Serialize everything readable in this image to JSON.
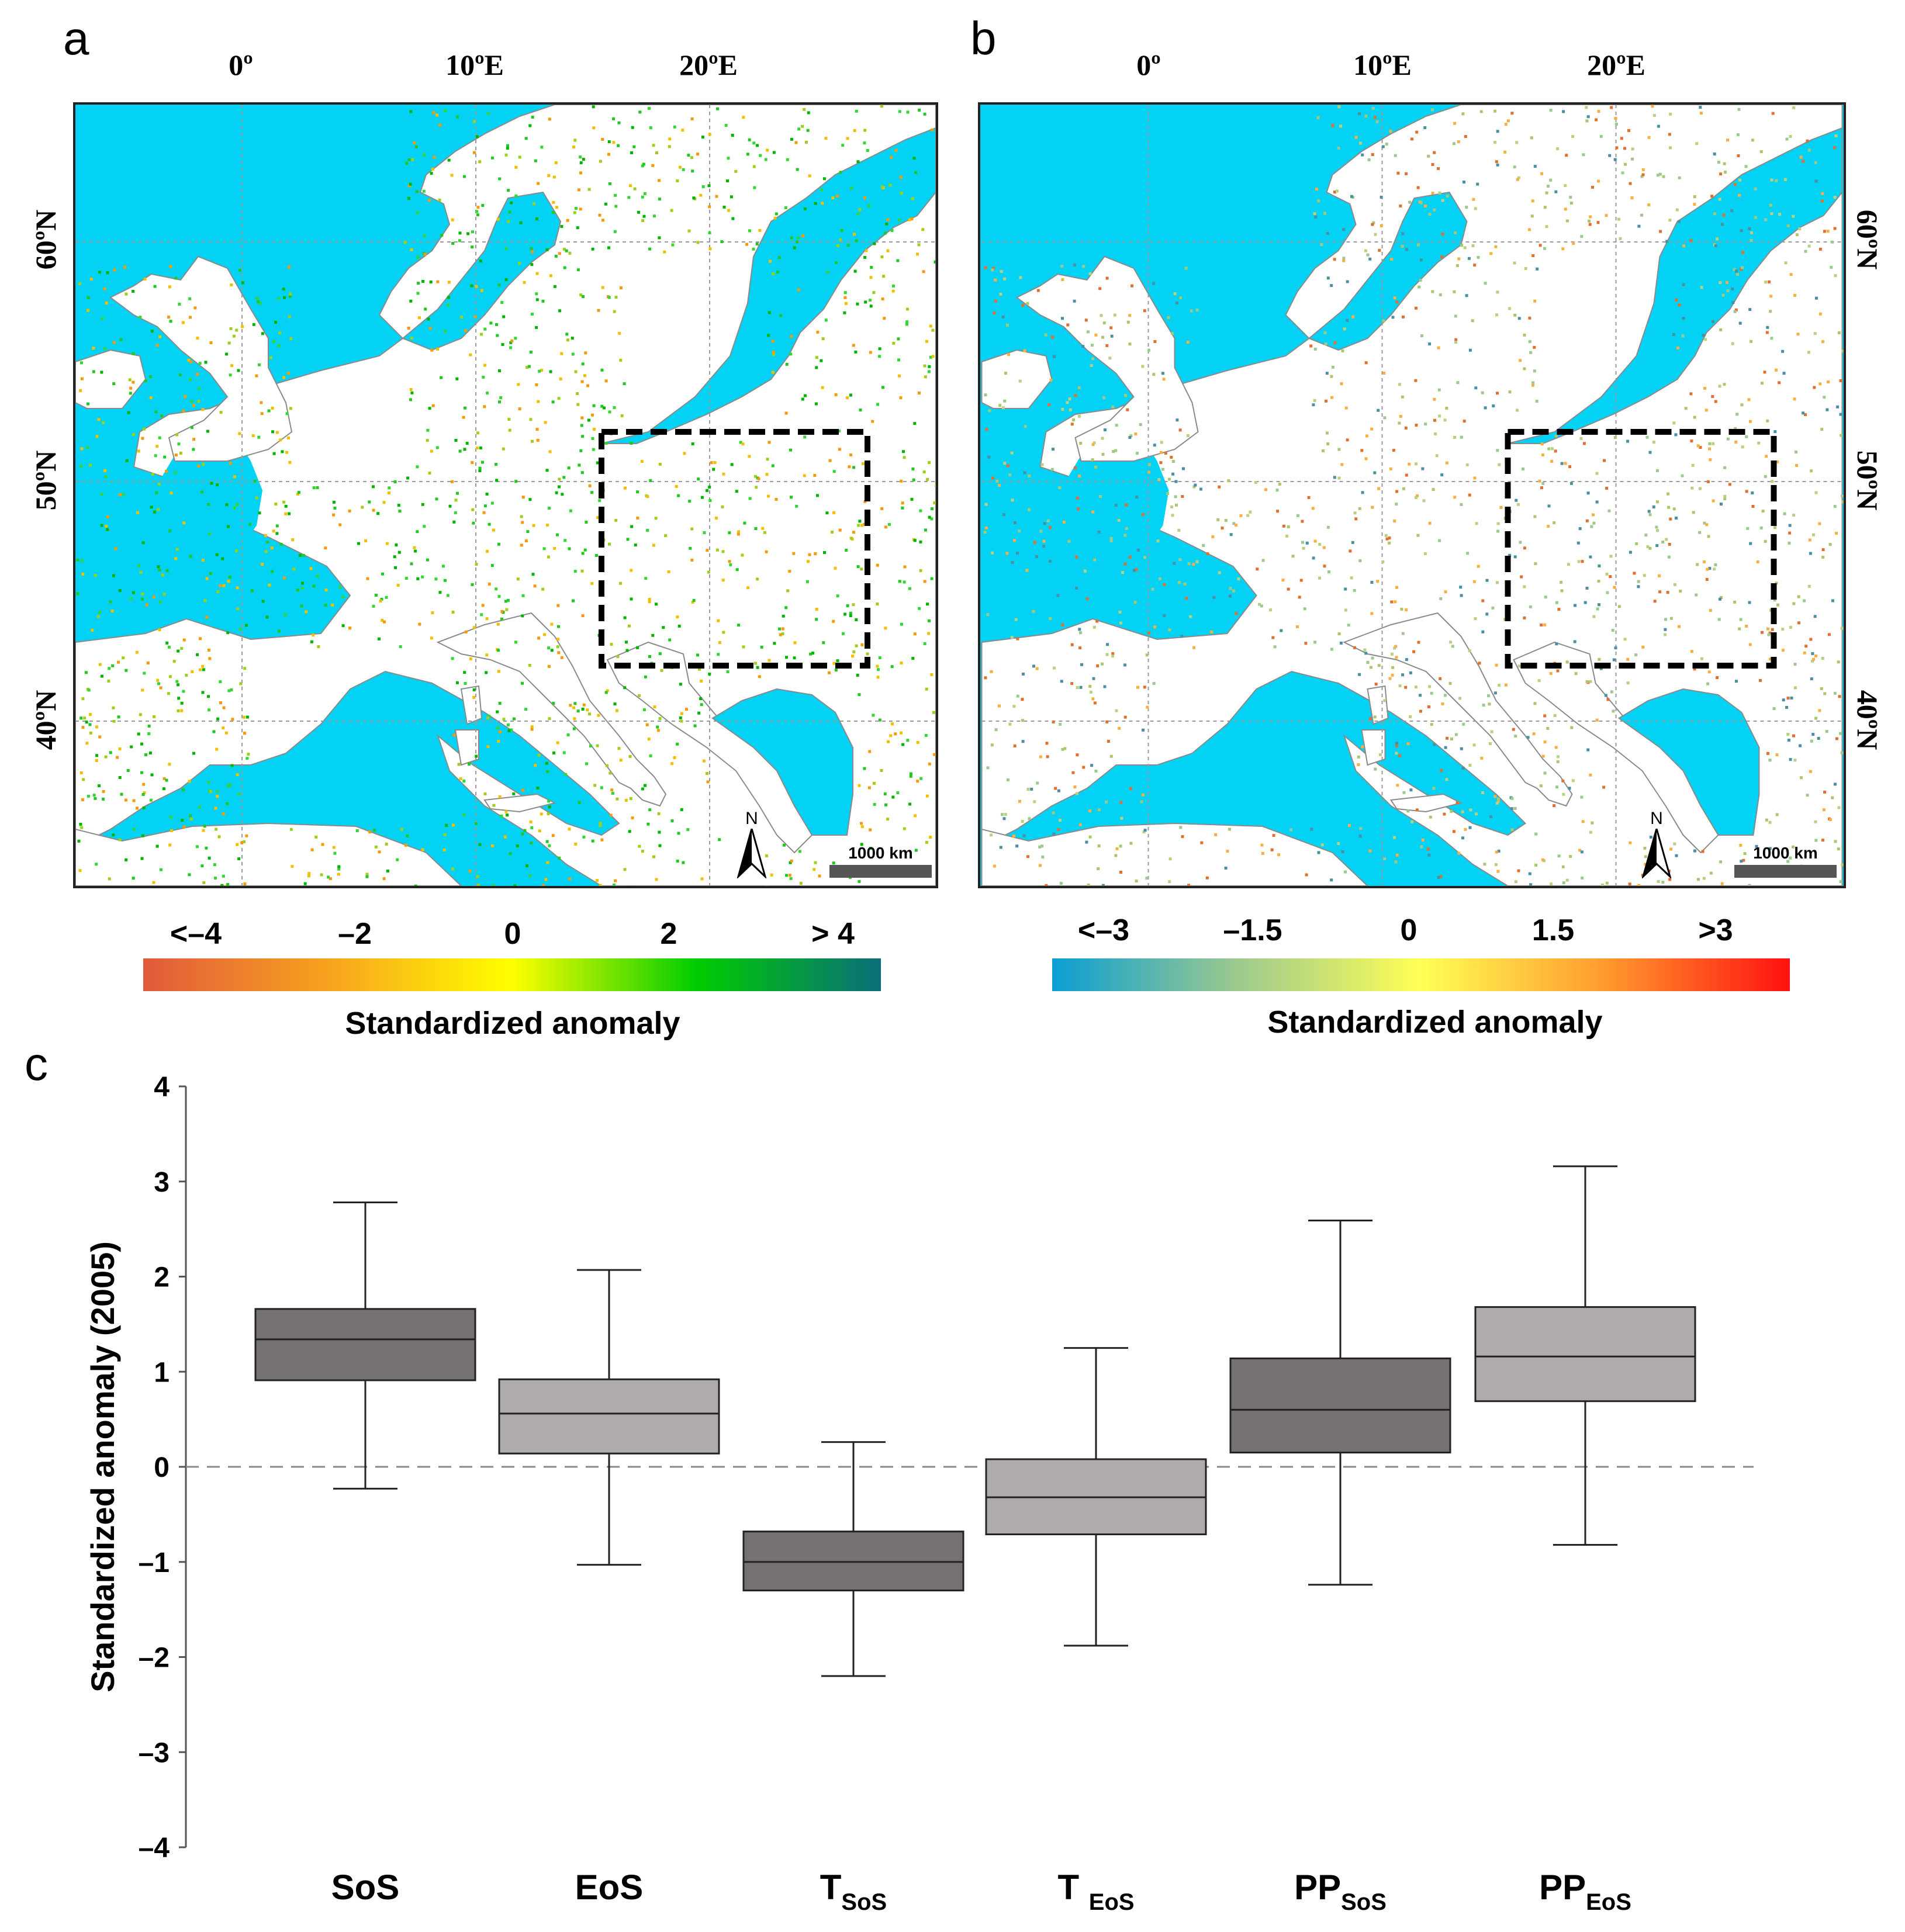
{
  "panels": {
    "a": {
      "letter": "a",
      "lon_labels": [
        "0º",
        "10ºE",
        "20ºE"
      ],
      "lat_labels": [
        "60ºN",
        "50ºN",
        "40ºN"
      ],
      "scale_label": "1000 km",
      "north_label": "N",
      "colorbar": {
        "ticks": [
          "<–4",
          "–2",
          "0",
          "2",
          "> 4"
        ],
        "title": "Standardized anomaly",
        "colors": [
          "#e15a3c",
          "#f7a21e",
          "#ffff00",
          "#00cc00",
          "#0a6e7a"
        ]
      }
    },
    "b": {
      "letter": "b",
      "lon_labels": [
        "0º",
        "10ºE",
        "20ºE"
      ],
      "lat_labels": [
        "60ºN",
        "50ºN",
        "40ºN"
      ],
      "scale_label": "1000 km",
      "north_label": "N",
      "colorbar": {
        "ticks": [
          "<–3",
          "–1.5",
          "0",
          "1.5",
          ">3"
        ],
        "title": "Standardized anomaly",
        "colors": [
          "#0a9ed4",
          "#9cc98e",
          "#ffff55",
          "#ff9a2e",
          "#ff1010"
        ]
      }
    },
    "c": {
      "letter": "c"
    }
  },
  "colors": {
    "sea": "#04d2f5",
    "land": "#ffffff",
    "box_dark": "#757170",
    "box_light": "#afabaa"
  },
  "chart_data": {
    "type": "box",
    "title": "",
    "xlabel": "",
    "ylabel": "Standardized anomaly (2005)",
    "ylim": [
      -4,
      4
    ],
    "yticks": [
      "–4",
      "–3",
      "–2",
      "–1",
      "0",
      "1",
      "2",
      "3",
      "4"
    ],
    "reference_line": 0,
    "categories": [
      {
        "label": "SoS",
        "main": "SoS",
        "sub": "",
        "shade": "dark",
        "whisker_low": -0.23,
        "q1": 0.91,
        "median": 1.34,
        "q3": 1.66,
        "whisker_high": 2.78
      },
      {
        "label": "EoS",
        "main": "EoS",
        "sub": "",
        "shade": "light",
        "whisker_low": -1.03,
        "q1": 0.14,
        "median": 0.56,
        "q3": 0.92,
        "whisker_high": 2.07
      },
      {
        "label": "TSoS",
        "main": "T",
        "sub": "SoS",
        "shade": "dark",
        "whisker_low": -2.2,
        "q1": -1.3,
        "median": -1.0,
        "q3": -0.68,
        "whisker_high": 0.26
      },
      {
        "label": "T EoS",
        "main": "T ",
        "sub": "EoS",
        "shade": "light",
        "whisker_low": -1.88,
        "q1": -0.71,
        "median": -0.32,
        "q3": 0.08,
        "whisker_high": 1.25
      },
      {
        "label": "PPSoS",
        "main": "PP",
        "sub": "SoS",
        "shade": "dark",
        "whisker_low": -1.24,
        "q1": 0.15,
        "median": 0.6,
        "q3": 1.14,
        "whisker_high": 2.59
      },
      {
        "label": "PPEoS",
        "main": "PP",
        "sub": "EoS",
        "shade": "light",
        "whisker_low": -0.82,
        "q1": 0.69,
        "median": 1.16,
        "q3": 1.68,
        "whisker_high": 3.16
      }
    ]
  }
}
